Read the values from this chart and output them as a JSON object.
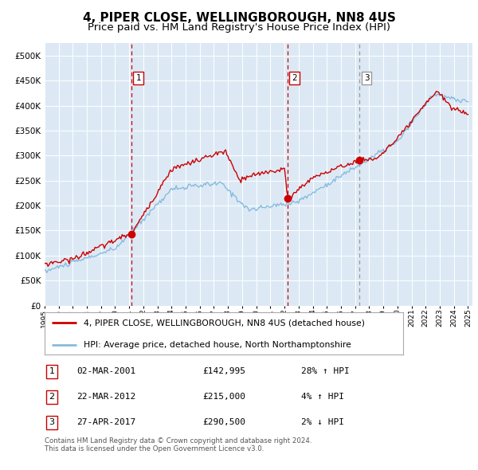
{
  "title": "4, PIPER CLOSE, WELLINGBOROUGH, NN8 4US",
  "subtitle": "Price paid vs. HM Land Registry's House Price Index (HPI)",
  "background_color": "#ffffff",
  "plot_bg_color": "#dce9f5",
  "red_line_color": "#cc0000",
  "hpi_line_color": "#88bbdd",
  "marker_color": "#cc0000",
  "vline_color_red": "#cc0000",
  "vline_color_gray": "#999999",
  "grid_color": "#ffffff",
  "yticks": [
    0,
    50000,
    100000,
    150000,
    200000,
    250000,
    300000,
    350000,
    400000,
    450000,
    500000
  ],
  "xtick_years": [
    1995,
    1996,
    1997,
    1998,
    1999,
    2000,
    2001,
    2002,
    2003,
    2004,
    2005,
    2006,
    2007,
    2008,
    2009,
    2010,
    2011,
    2012,
    2013,
    2014,
    2015,
    2016,
    2017,
    2018,
    2019,
    2020,
    2021,
    2022,
    2023,
    2024,
    2025
  ],
  "sales": [
    {
      "label": "1",
      "date": "02-MAR-2001",
      "price": 142995,
      "x_year": 2001.17,
      "hpi_pct": "28% ↑ HPI",
      "vline_color": "#cc0000"
    },
    {
      "label": "2",
      "date": "22-MAR-2012",
      "price": 215000,
      "x_year": 2012.22,
      "hpi_pct": "4% ↑ HPI",
      "vline_color": "#cc0000"
    },
    {
      "label": "3",
      "date": "27-APR-2017",
      "price": 290500,
      "x_year": 2017.32,
      "hpi_pct": "2% ↓ HPI",
      "vline_color": "#999999"
    }
  ],
  "legend_line1": "4, PIPER CLOSE, WELLINGBOROUGH, NN8 4US (detached house)",
  "legend_line2": "HPI: Average price, detached house, North Northamptonshire",
  "table_rows": [
    {
      "num": "1",
      "date": "02-MAR-2001",
      "price": "£142,995",
      "pct": "28% ↑ HPI",
      "border": "#cc0000"
    },
    {
      "num": "2",
      "date": "22-MAR-2012",
      "price": "£215,000",
      "pct": "4% ↑ HPI",
      "border": "#cc0000"
    },
    {
      "num": "3",
      "date": "27-APR-2017",
      "price": "£290,500",
      "pct": "2% ↓ HPI",
      "border": "#cc0000"
    }
  ],
  "footnote": "Contains HM Land Registry data © Crown copyright and database right 2024.\nThis data is licensed under the Open Government Licence v3.0.",
  "title_fontsize": 11,
  "subtitle_fontsize": 9.5
}
